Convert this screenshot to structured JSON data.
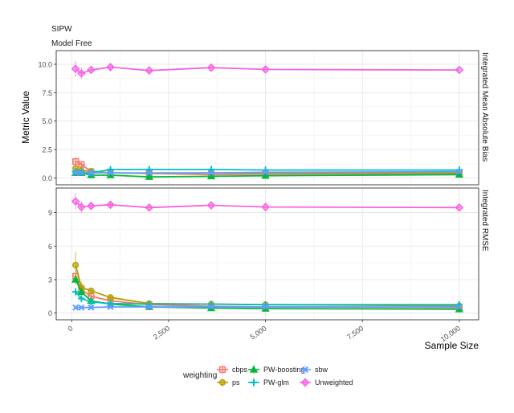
{
  "strip_labels": [
    "SIPW",
    "Model Free"
  ],
  "chart_data": {
    "type": "line",
    "xlabel": "Sample Size",
    "ylabel": "Metric Value",
    "x": [
      100,
      250,
      500,
      1000,
      2000,
      3600,
      5000,
      10000
    ],
    "x_ticks": [
      0,
      2500,
      5000,
      7500,
      10000
    ],
    "x_tick_labels": [
      "0",
      "2,500",
      "5,000",
      "7,500",
      "10,000"
    ],
    "xlim": [
      -400,
      10500
    ],
    "grid": true,
    "legend": {
      "title": "weighting",
      "position": "bottom",
      "entries": [
        {
          "name": "cbps",
          "color": "#F8766D",
          "shape": "square-cross"
        },
        {
          "name": "ps",
          "color": "#B79F00",
          "shape": "circle"
        },
        {
          "name": "PW-boosting",
          "color": "#00BA38",
          "shape": "triangle"
        },
        {
          "name": "PW-glm",
          "color": "#00BFC4",
          "shape": "plus"
        },
        {
          "name": "sbw",
          "color": "#619CFF",
          "shape": "x"
        },
        {
          "name": "Unweighted",
          "color": "#F564E3",
          "shape": "diamond"
        }
      ]
    },
    "panels": [
      {
        "facet_label": "Integrated Mean Absolute Bias",
        "ylim": [
          -0.6,
          11.2
        ],
        "y_ticks": [
          0,
          2.5,
          5,
          7.5,
          10
        ],
        "y_tick_labels": [
          "0.0",
          "2.5",
          "5.0",
          "7.5",
          "10.0"
        ],
        "series": [
          {
            "name": "cbps",
            "values": [
              1.45,
              1.2,
              0.55,
              0.45,
              0.4,
              0.3,
              0.35,
              0.4
            ],
            "errors": [
              0.4,
              0.25,
              0.1,
              0.1,
              0.05,
              0.05,
              0.05,
              0.05
            ]
          },
          {
            "name": "ps",
            "values": [
              0.85,
              0.65,
              0.6,
              0.45,
              0.4,
              0.45,
              0.45,
              0.45
            ],
            "errors": [
              0.2,
              0.1,
              0.1,
              0.05,
              0.05,
              0.05,
              0.05,
              0.05
            ]
          },
          {
            "name": "PW-boosting",
            "values": [
              0.45,
              0.45,
              0.25,
              0.25,
              0.1,
              0.15,
              0.2,
              0.3
            ],
            "errors": [
              0.1,
              0.05,
              0.05,
              0.05,
              0.05,
              0.05,
              0.05,
              0.05
            ]
          },
          {
            "name": "PW-glm",
            "values": [
              0.55,
              0.5,
              0.45,
              0.75,
              0.75,
              0.75,
              0.7,
              0.7
            ],
            "errors": [
              0.15,
              0.1,
              0.1,
              0.05,
              0.05,
              0.05,
              0.05,
              0.05
            ]
          },
          {
            "name": "sbw",
            "values": [
              0.45,
              0.45,
              0.45,
              0.45,
              0.45,
              0.45,
              0.5,
              0.55
            ],
            "errors": [
              0.05,
              0.05,
              0.05,
              0.05,
              0.05,
              0.05,
              0.05,
              0.05
            ]
          },
          {
            "name": "Unweighted",
            "values": [
              9.6,
              9.2,
              9.5,
              9.75,
              9.45,
              9.7,
              9.55,
              9.5
            ],
            "errors": [
              0.7,
              0.5,
              0.35,
              0.25,
              0.15,
              0.1,
              0.1,
              0.05
            ]
          }
        ]
      },
      {
        "facet_label": "Integrated RMSE",
        "ylim": [
          -0.6,
          11.2
        ],
        "y_ticks": [
          0,
          3,
          6,
          9
        ],
        "y_tick_labels": [
          "0",
          "3",
          "6",
          "9"
        ],
        "series": [
          {
            "name": "cbps",
            "values": [
              3.3,
              2.1,
              1.5,
              1.1,
              0.75,
              0.6,
              0.55,
              0.5
            ],
            "errors": [
              0.5,
              0.3,
              0.2,
              0.1,
              0.05,
              0.05,
              0.05,
              0.05
            ]
          },
          {
            "name": "ps",
            "values": [
              4.3,
              2.3,
              2.0,
              1.4,
              0.85,
              0.8,
              0.75,
              0.65
            ],
            "errors": [
              1.2,
              0.5,
              0.2,
              0.15,
              0.1,
              0.05,
              0.05,
              0.05
            ]
          },
          {
            "name": "PW-boosting",
            "values": [
              3.0,
              1.9,
              1.1,
              0.8,
              0.55,
              0.45,
              0.4,
              0.35
            ],
            "errors": [
              0.4,
              0.2,
              0.1,
              0.05,
              0.05,
              0.05,
              0.05,
              0.05
            ]
          },
          {
            "name": "PW-glm",
            "values": [
              1.9,
              1.3,
              1.0,
              0.85,
              0.8,
              0.8,
              0.75,
              0.75
            ],
            "errors": [
              0.3,
              0.2,
              0.1,
              0.05,
              0.05,
              0.05,
              0.05,
              0.05
            ]
          },
          {
            "name": "sbw",
            "values": [
              0.5,
              0.5,
              0.5,
              0.55,
              0.55,
              0.55,
              0.55,
              0.55
            ],
            "errors": [
              0.05,
              0.05,
              0.05,
              0.05,
              0.05,
              0.05,
              0.05,
              0.05
            ]
          },
          {
            "name": "Unweighted",
            "values": [
              10.0,
              9.5,
              9.6,
              9.7,
              9.45,
              9.65,
              9.5,
              9.45
            ],
            "errors": [
              0.7,
              0.5,
              0.35,
              0.25,
              0.15,
              0.1,
              0.1,
              0.05
            ]
          }
        ]
      }
    ]
  }
}
